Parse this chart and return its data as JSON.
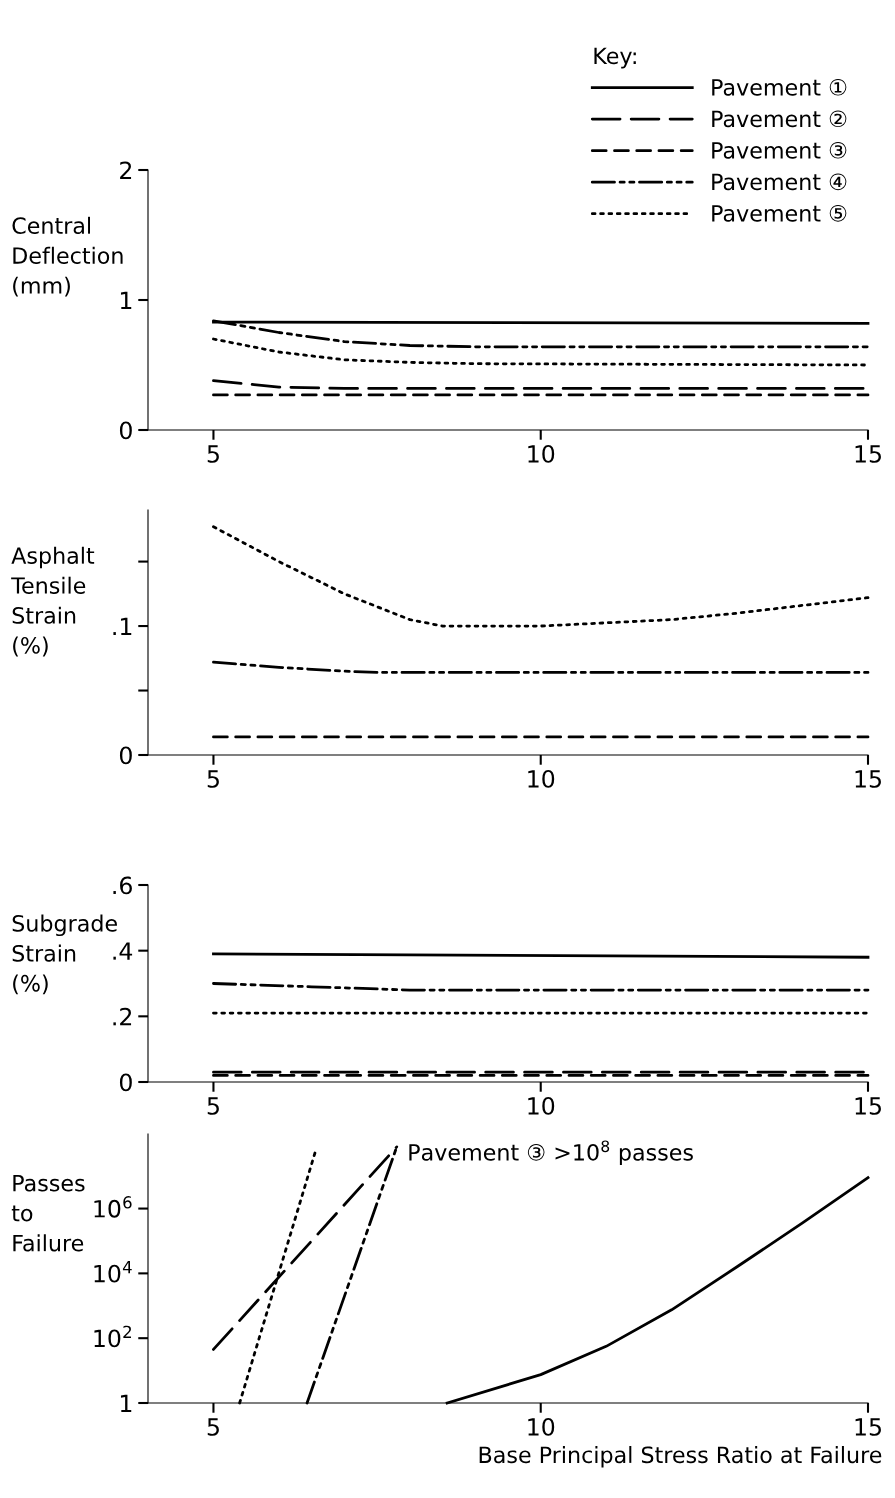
{
  "chart_data": [
    {
      "type": "line",
      "ylabel": "Central\nDeflection\n(mm)",
      "legend_title": "Key:",
      "legend": "top right",
      "xlim": [
        4,
        15
      ],
      "xticks": [
        5,
        10,
        15
      ],
      "ylim": [
        0,
        2
      ],
      "yticks": [
        0,
        1,
        2
      ],
      "grid": false,
      "series": [
        {
          "name": "Pavement ①",
          "color": "#000000",
          "line_style": "solid",
          "x": [
            5,
            15
          ],
          "values": [
            0.83,
            0.82
          ]
        },
        {
          "name": "Pavement ②",
          "color": "#000000",
          "line_style": "longdashed",
          "x": [
            5,
            6,
            7,
            15
          ],
          "values": [
            0.38,
            0.33,
            0.32,
            0.32
          ]
        },
        {
          "name": "Pavement ③",
          "color": "#000000",
          "line_style": "dashed",
          "x": [
            5,
            15
          ],
          "values": [
            0.27,
            0.27
          ]
        },
        {
          "name": "Pavement ④",
          "color": "#000000",
          "line_style": "dashdotdotted",
          "x": [
            5,
            6,
            7,
            8,
            9,
            15
          ],
          "values": [
            0.84,
            0.75,
            0.68,
            0.65,
            0.64,
            0.64
          ]
        },
        {
          "name": "Pavement ⑤",
          "color": "#000000",
          "line_style": "dotted",
          "x": [
            5,
            6,
            7,
            8,
            9,
            15
          ],
          "values": [
            0.7,
            0.6,
            0.54,
            0.52,
            0.51,
            0.5
          ]
        }
      ]
    },
    {
      "type": "line",
      "ylabel": "Asphalt\nTensile\nStrain\n(%)",
      "xlim": [
        4,
        15
      ],
      "xticks": [
        5,
        10,
        15
      ],
      "ylim": [
        0,
        0.19
      ],
      "yticks": [
        {
          "value": 0,
          "label": "0"
        },
        {
          "value": 0.05,
          "label": null
        },
        {
          "value": 0.1,
          "label": ".1"
        },
        {
          "value": 0.15,
          "label": null
        }
      ],
      "grid": false,
      "series": [
        {
          "color": "#000000",
          "line_style": "dashed",
          "x": [
            5,
            15
          ],
          "values": [
            0.014,
            0.014
          ]
        },
        {
          "color": "#000000",
          "line_style": "dashdotdotted",
          "x": [
            5,
            6,
            7,
            7.5,
            15
          ],
          "values": [
            0.072,
            0.068,
            0.065,
            0.064,
            0.064
          ]
        },
        {
          "color": "#000000",
          "line_style": "dotted",
          "x": [
            5,
            6,
            7,
            8,
            8.5,
            10,
            12,
            13,
            14,
            15
          ],
          "values": [
            0.177,
            0.15,
            0.125,
            0.105,
            0.1,
            0.1,
            0.105,
            0.11,
            0.116,
            0.122
          ]
        }
      ]
    },
    {
      "type": "line",
      "ylabel": "Subgrade\nStrain\n(%)",
      "xlim": [
        4,
        15
      ],
      "xticks": [
        5,
        10,
        15
      ],
      "ylim": [
        0,
        0.6
      ],
      "yticks": [
        {
          "value": 0,
          "label": "0"
        },
        {
          "value": 0.2,
          "label": ".2"
        },
        {
          "value": 0.4,
          "label": ".4"
        },
        {
          "value": 0.6,
          "label": ".6"
        }
      ],
      "grid": false,
      "series": [
        {
          "color": "#000000",
          "line_style": "solid",
          "x": [
            5,
            15
          ],
          "values": [
            0.39,
            0.38
          ]
        },
        {
          "color": "#000000",
          "line_style": "longdashed",
          "x": [
            5,
            15
          ],
          "values": [
            0.03,
            0.03
          ]
        },
        {
          "color": "#000000",
          "line_style": "dashed",
          "x": [
            5,
            15
          ],
          "values": [
            0.02,
            0.02
          ]
        },
        {
          "color": "#000000",
          "line_style": "dashdotdotted",
          "x": [
            5,
            6.5,
            8,
            15
          ],
          "values": [
            0.3,
            0.29,
            0.28,
            0.28
          ]
        },
        {
          "color": "#000000",
          "line_style": "dotted",
          "x": [
            5,
            15
          ],
          "values": [
            0.21,
            0.21
          ]
        }
      ]
    },
    {
      "type": "line",
      "ylabel": "Passes\nto\nFailure",
      "xlabel": "Base Principal Stress Ratio at Failure",
      "log": "y",
      "xlim": [
        4,
        15
      ],
      "xticks": [
        5,
        10,
        15
      ],
      "ylim": [
        1,
        200000000
      ],
      "yticks": [
        {
          "value": 1,
          "label": "1"
        },
        {
          "value": 100,
          "label": "10$^{2}$"
        },
        {
          "value": 10000,
          "label": "10$^{4}$"
        },
        {
          "value": 1000000,
          "label": "10$^{6}$"
        }
      ],
      "grid": false,
      "annotations": [
        "Pavement ③ >10$^{8}$ passes"
      ],
      "series": [
        {
          "color": "#000000",
          "line_style": "solid",
          "x": [
            8.57,
            10,
            11,
            12,
            13,
            14,
            15
          ],
          "values": [
            1,
            7.5,
            56,
            750,
            16000,
            360000,
            9000000
          ]
        },
        {
          "color": "#000000",
          "line_style": "longdashed",
          "x": [
            5,
            7.8
          ],
          "values": [
            45,
            80000000
          ]
        },
        {
          "color": "#000000",
          "line_style": "dashdotdotted",
          "x": [
            6.43,
            7.8
          ],
          "values": [
            1,
            80000000
          ]
        },
        {
          "color": "#000000",
          "line_style": "dotted",
          "x": [
            5.4,
            6.56
          ],
          "values": [
            1,
            60000000
          ]
        }
      ]
    }
  ]
}
